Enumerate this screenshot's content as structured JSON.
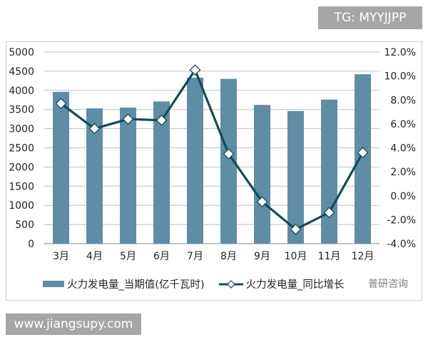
{
  "badge_top": "TG: MYYJJPP",
  "site_footer": "www.jiangsupy.com",
  "watermark": "普研咨询",
  "chart_data": {
    "type": "bar+line",
    "categories": [
      "3月",
      "4月",
      "5月",
      "6月",
      "7月",
      "8月",
      "9月",
      "10月",
      "11月",
      "12月"
    ],
    "series": [
      {
        "name": "火力发电量_当期值(亿千瓦时)",
        "type": "bar",
        "axis": "left",
        "color": "#5f8da5",
        "values": [
          3960,
          3530,
          3550,
          3710,
          4330,
          4300,
          3620,
          3460,
          3760,
          4420
        ]
      },
      {
        "name": "火力发电量_同比增长",
        "type": "line",
        "axis": "right",
        "color": "#0f4c5c",
        "values": [
          7.7,
          5.6,
          6.4,
          6.3,
          10.5,
          3.5,
          -0.5,
          -2.8,
          -1.4,
          3.6
        ]
      }
    ],
    "left_axis": {
      "ylim": [
        0,
        5000
      ],
      "ticks": [
        "0",
        "500",
        "1000",
        "1500",
        "2000",
        "2500",
        "3000",
        "3500",
        "4000",
        "4500",
        "5000"
      ]
    },
    "right_axis": {
      "ylim": [
        -4,
        12
      ],
      "ticks": [
        "-4.0%",
        "-2.0%",
        "0.0%",
        "2.0%",
        "4.0%",
        "6.0%",
        "8.0%",
        "10.0%",
        "12.0%"
      ]
    },
    "grid": true,
    "legend": "bottom"
  }
}
